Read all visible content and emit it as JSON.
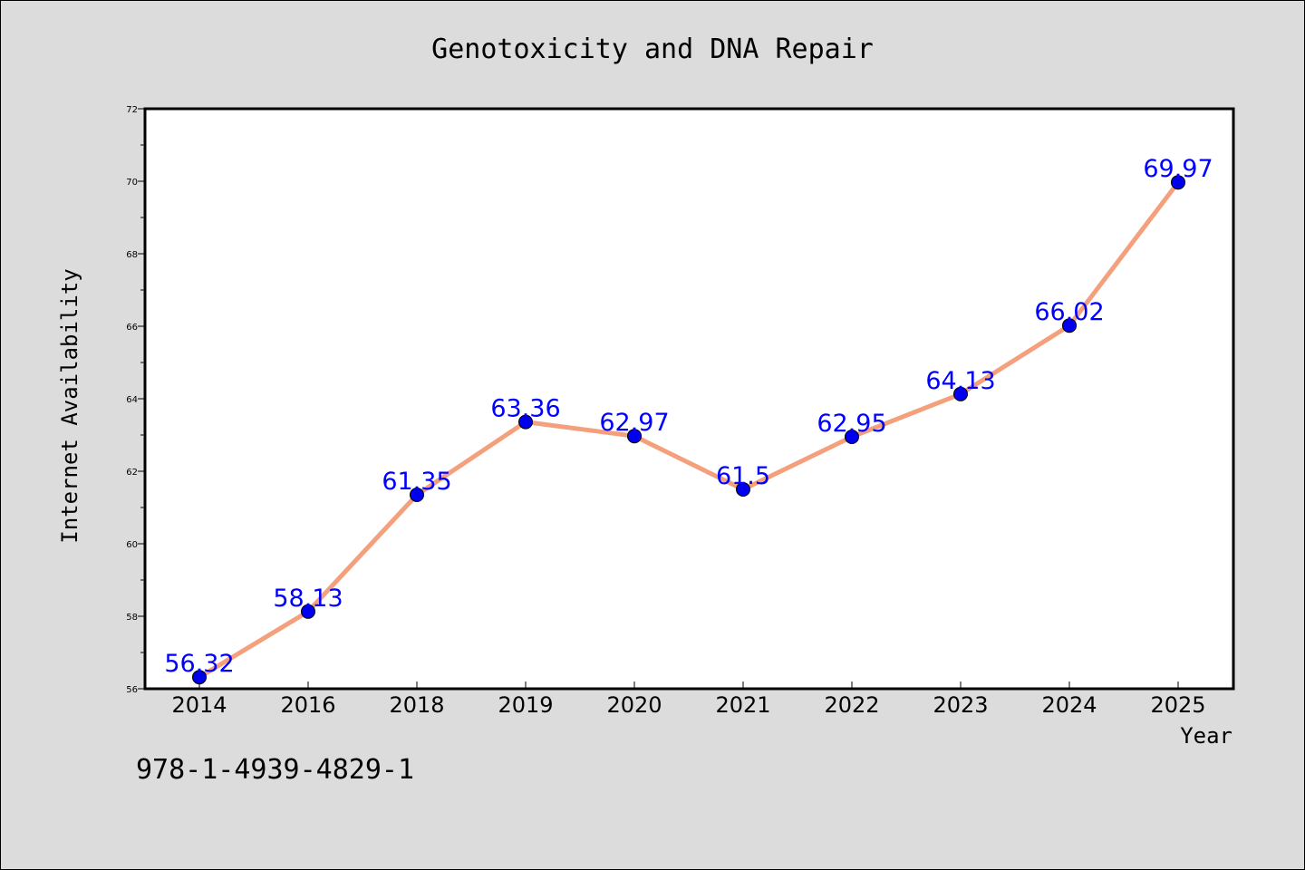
{
  "chart_data": {
    "type": "line",
    "title": "Genotoxicity and DNA Repair",
    "xlabel": "Year",
    "ylabel": "Internet Availability",
    "categories": [
      "2014",
      "2016",
      "2018",
      "2019",
      "2020",
      "2021",
      "2022",
      "2023",
      "2024",
      "2025"
    ],
    "values": [
      56.32,
      58.13,
      61.35,
      63.36,
      62.97,
      61.5,
      62.95,
      64.13,
      66.02,
      69.97
    ],
    "data_labels": [
      "56.32",
      "58.13",
      "61.35",
      "63.36",
      "62.97",
      "61.5",
      "62.95",
      "64.13",
      "66.02",
      "69.97"
    ],
    "ylim": [
      56,
      72
    ],
    "yticks": [
      56,
      58,
      60,
      62,
      64,
      66,
      68,
      70,
      72
    ],
    "grid": false,
    "legend": "none",
    "colors": {
      "line": "#f4a07c",
      "marker": "#0000ee",
      "data_label": "#0000ff",
      "plot_background": "#ffffff",
      "page_background": "#dcdcdc"
    }
  },
  "footer": {
    "code": "978-1-4939-4829-1"
  }
}
